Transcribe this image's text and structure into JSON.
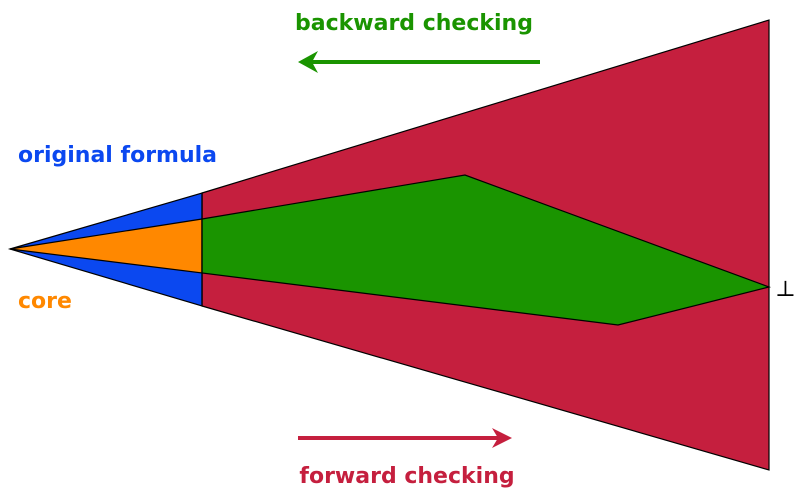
{
  "labels": {
    "backward": "backward checking",
    "original": "original formula",
    "core": "core",
    "forward": "forward checking",
    "bottom_symbol": "⊥"
  },
  "colors": {
    "backward": "#1a9400",
    "original": "#0b48f0",
    "core": "#ff8800",
    "forward": "#c51f3e",
    "green_region": "#1a9400",
    "red_region": "#c51f3e",
    "blue_region": "#0b48f0",
    "orange_region": "#ff8800"
  }
}
